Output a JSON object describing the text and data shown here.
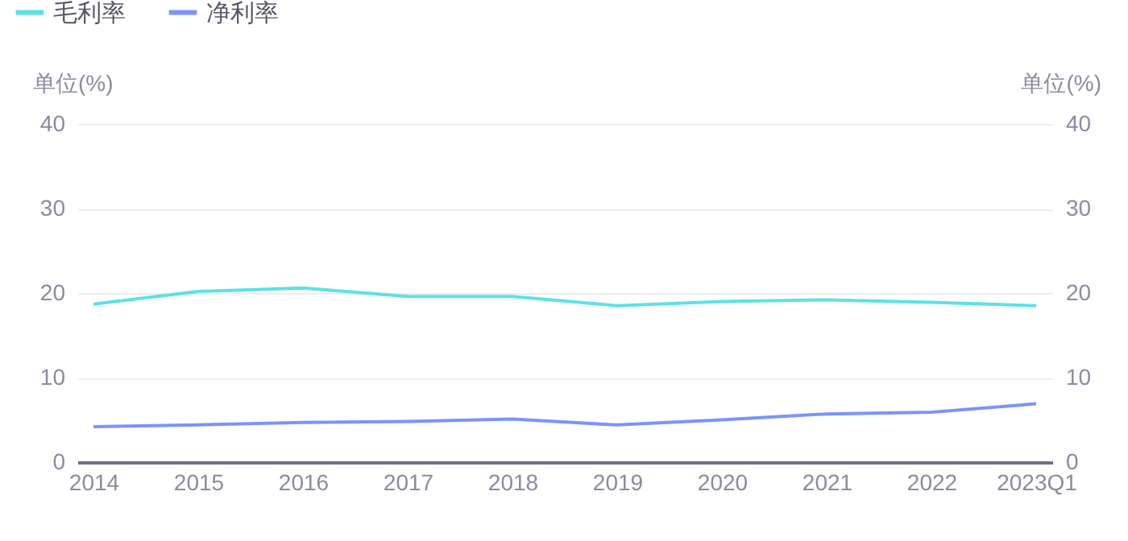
{
  "chart_data": {
    "type": "line",
    "categories": [
      "2014",
      "2015",
      "2016",
      "2017",
      "2018",
      "2019",
      "2020",
      "2021",
      "2022",
      "2023Q1"
    ],
    "series": [
      {
        "name": "毛利率",
        "color": "#5ce1e6",
        "values": [
          18.7,
          20.2,
          20.6,
          19.6,
          19.6,
          18.5,
          19.0,
          19.2,
          18.9,
          18.5
        ]
      },
      {
        "name": "净利率",
        "color": "#7b93fa",
        "values": [
          4.2,
          4.4,
          4.7,
          4.8,
          5.1,
          4.4,
          5.0,
          5.7,
          5.9,
          6.9
        ]
      }
    ],
    "ylabel": "单位(%)",
    "y2label": "单位(%)",
    "ylim": [
      0,
      40
    ],
    "yticks": [
      0,
      10,
      20,
      30,
      40
    ],
    "y2lim": [
      0,
      40
    ],
    "y2ticks": [
      0,
      10,
      20,
      30,
      40
    ],
    "grid": "y",
    "legend": "top left",
    "marker": "none",
    "line_style": "solid"
  }
}
